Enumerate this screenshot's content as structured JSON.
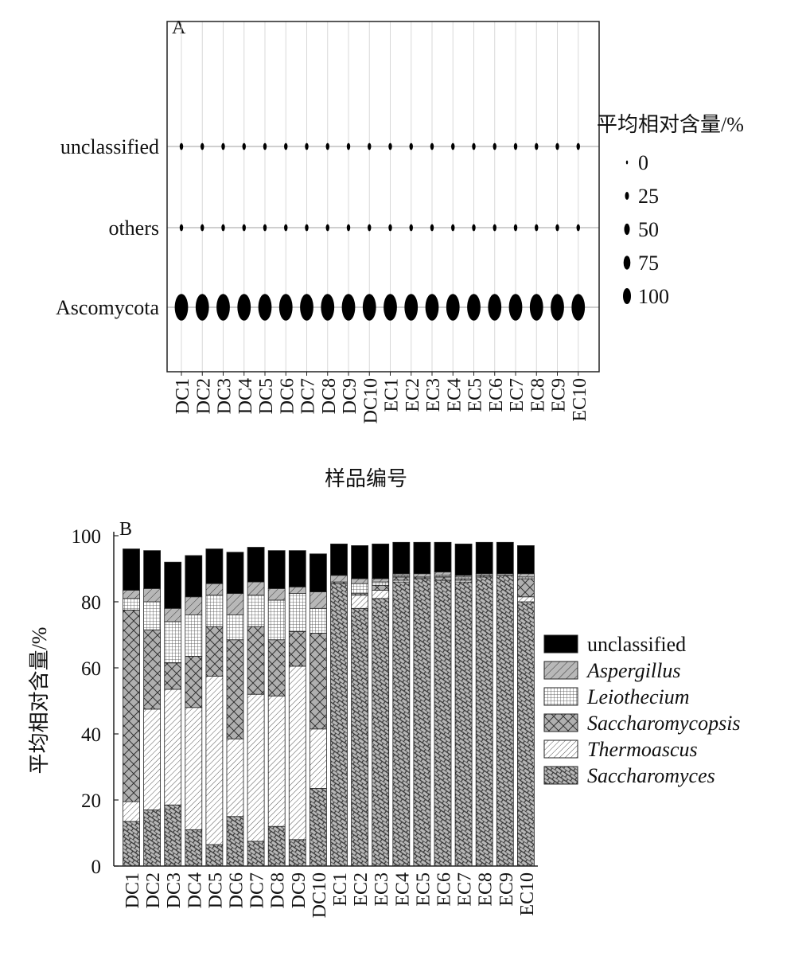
{
  "chart_data": [
    {
      "type": "bubble",
      "panel_label": "A",
      "xlabel": "样品编号",
      "categories": [
        "DC1",
        "DC2",
        "DC3",
        "DC4",
        "DC5",
        "DC6",
        "DC7",
        "DC8",
        "DC9",
        "DC10",
        "EC1",
        "EC2",
        "EC3",
        "EC4",
        "EC5",
        "EC6",
        "EC7",
        "EC8",
        "EC9",
        "EC10"
      ],
      "rows": [
        "unclassified",
        "others",
        "Ascomycota"
      ],
      "values": {
        "unclassified": [
          2,
          2,
          2,
          2,
          2,
          2,
          2,
          2,
          2,
          2,
          2,
          2,
          2,
          2,
          2,
          2,
          2,
          2,
          2,
          2
        ],
        "others": [
          1,
          1,
          1,
          1,
          1,
          1,
          1,
          1,
          1,
          1,
          1,
          1,
          1,
          1,
          1,
          1,
          1,
          1,
          1,
          1
        ],
        "Ascomycota": [
          97,
          97,
          97,
          97,
          97,
          97,
          97,
          97,
          97,
          97,
          97,
          97,
          97,
          97,
          97,
          97,
          97,
          97,
          97,
          97
        ]
      },
      "legend_title": "平均相对含量/%",
      "legend_sizes": [
        0,
        25,
        50,
        75,
        100
      ],
      "legend_placement": "right"
    },
    {
      "type": "stacked-bar",
      "panel_label": "B",
      "ylabel": "平均相对含量/%",
      "ylim": [
        0,
        100
      ],
      "yticks": [
        0,
        20,
        40,
        60,
        80,
        100
      ],
      "categories": [
        "DC1",
        "DC2",
        "DC3",
        "DC4",
        "DC5",
        "DC6",
        "DC7",
        "DC8",
        "DC9",
        "DC10",
        "EC1",
        "EC2",
        "EC3",
        "EC4",
        "EC5",
        "EC6",
        "EC7",
        "EC8",
        "EC9",
        "EC10"
      ],
      "legend_placement": "right",
      "series": [
        {
          "name": "Saccharomyces",
          "italic": true,
          "pattern": "brick",
          "values": [
            13.5,
            17,
            18.5,
            11,
            6.5,
            15,
            7.5,
            12,
            8,
            23.5,
            85.5,
            78,
            81,
            86,
            87,
            86.5,
            86,
            87.5,
            88,
            80
          ]
        },
        {
          "name": "Thermoascus",
          "italic": true,
          "pattern": "diag-white",
          "values": [
            6,
            30.5,
            35,
            37,
            51,
            23.5,
            44.5,
            39.5,
            52.5,
            18,
            0,
            4,
            2.5,
            0.5,
            0,
            0,
            0.5,
            0,
            0,
            1.5
          ]
        },
        {
          "name": "Saccharomycopsis",
          "italic": true,
          "pattern": "cross",
          "values": [
            58,
            24,
            8,
            15.5,
            15,
            30,
            20.5,
            17,
            10.5,
            29,
            0.5,
            0.5,
            1.5,
            1,
            0.5,
            1,
            0.5,
            0.5,
            0,
            5.5
          ]
        },
        {
          "name": "Leiothecium",
          "italic": true,
          "pattern": "grid",
          "values": [
            3.5,
            8.5,
            12.5,
            12.5,
            9.5,
            7.5,
            9.5,
            12,
            11.5,
            7.5,
            0,
            3,
            1,
            0.5,
            0,
            0.5,
            0.5,
            0,
            0,
            0.5
          ]
        },
        {
          "name": "Aspergillus",
          "italic": true,
          "pattern": "diag-gray",
          "values": [
            2.5,
            4,
            4,
            5.5,
            3.5,
            6.5,
            4,
            3.5,
            2,
            5,
            2,
            1.5,
            1,
            0.5,
            1,
            1,
            0.5,
            0.5,
            0.5,
            1
          ]
        },
        {
          "name": "unclassified",
          "italic": false,
          "pattern": "black",
          "values": [
            12.5,
            11.5,
            14,
            12.5,
            10.5,
            12.5,
            10.5,
            11.5,
            11,
            11.5,
            9.5,
            10,
            10.5,
            9.5,
            9.5,
            9,
            9.5,
            9.5,
            9.5,
            8.5
          ]
        }
      ]
    }
  ]
}
